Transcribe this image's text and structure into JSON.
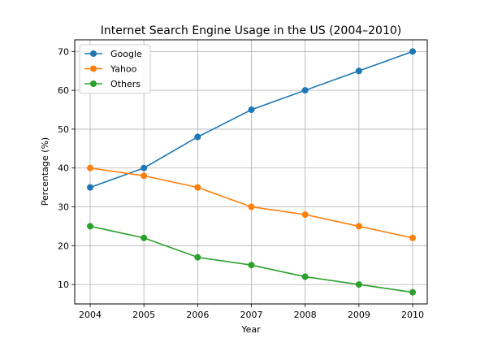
{
  "chart_data": {
    "type": "line",
    "title": "Internet Search Engine Usage in the US (2004–2010)",
    "xlabel": "Year",
    "ylabel": "Percentage (%)",
    "x": [
      "2004",
      "2005",
      "2006",
      "2007",
      "2008",
      "2009",
      "2010"
    ],
    "ylim": [
      5,
      73
    ],
    "yticks": [
      10,
      20,
      30,
      40,
      50,
      60,
      70
    ],
    "grid": true,
    "legend": "upper-left",
    "series": [
      {
        "name": "Google",
        "color": "#1f77b4",
        "values": [
          35,
          40,
          48,
          55,
          60,
          65,
          70
        ]
      },
      {
        "name": "Yahoo",
        "color": "#ff7f0e",
        "values": [
          40,
          38,
          35,
          30,
          28,
          25,
          22
        ]
      },
      {
        "name": "Others",
        "color": "#2ca02c",
        "values": [
          25,
          22,
          17,
          15,
          12,
          10,
          8
        ]
      }
    ]
  }
}
